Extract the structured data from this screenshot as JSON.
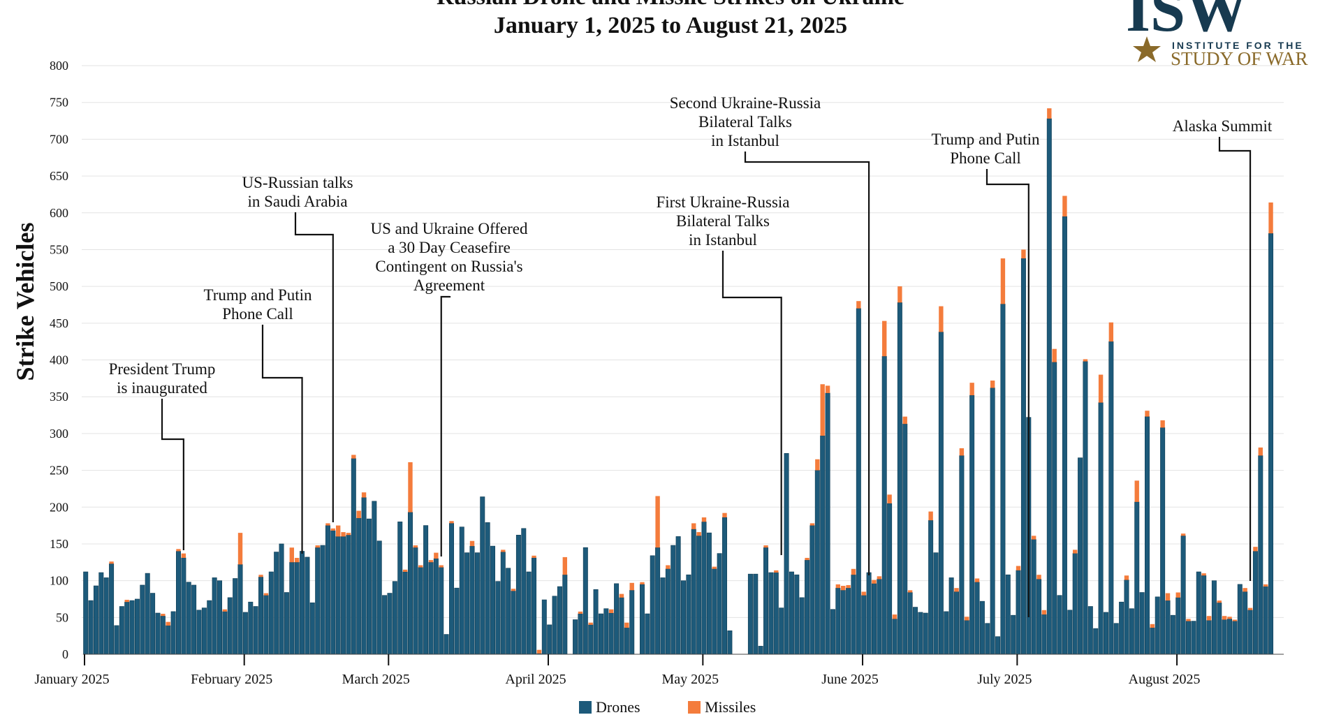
{
  "chart_data": {
    "type": "bar",
    "stacked": true,
    "title": "Russian Drone and Missile Strikes on Ukraine",
    "subtitle": "January 1, 2025 to August 21, 2025",
    "ylabel": "Strike Vehicles",
    "xlabel": "",
    "ylim": [
      0,
      800
    ],
    "yticks": [
      0,
      50,
      100,
      150,
      200,
      250,
      300,
      350,
      400,
      450,
      500,
      550,
      600,
      650,
      700,
      750,
      800
    ],
    "grid": true,
    "legend_position": "bottom-center",
    "x_start": "2025-01-01",
    "x_end": "2025-08-21",
    "month_ticks": [
      {
        "label": "January 2025",
        "date": "2025-01-01"
      },
      {
        "label": "February 2025",
        "date": "2025-02-01"
      },
      {
        "label": "March 2025",
        "date": "2025-03-01"
      },
      {
        "label": "April 2025",
        "date": "2025-04-01"
      },
      {
        "label": "May 2025",
        "date": "2025-05-01"
      },
      {
        "label": "June 2025",
        "date": "2025-06-01"
      },
      {
        "label": "July 2025",
        "date": "2025-07-01"
      },
      {
        "label": "August 2025",
        "date": "2025-08-01"
      }
    ],
    "series": [
      {
        "name": "Drones",
        "color": "#1d5a7a",
        "values": [
          112,
          73,
          93,
          111,
          104,
          123,
          39,
          65,
          71,
          73,
          75,
          94,
          110,
          83,
          56,
          52,
          39,
          58,
          140,
          131,
          98,
          94,
          60,
          63,
          73,
          104,
          100,
          58,
          77,
          103,
          122,
          57,
          71,
          65,
          105,
          80,
          112,
          139,
          150,
          84,
          125,
          125,
          140,
          132,
          70,
          145,
          148,
          175,
          168,
          160,
          160,
          162,
          266,
          185,
          213,
          184,
          208,
          154,
          80,
          83,
          99,
          180,
          112,
          193,
          145,
          118,
          175,
          125,
          130,
          118,
          27,
          178,
          90,
          173,
          138,
          147,
          138,
          214,
          179,
          147,
          99,
          139,
          117,
          86,
          162,
          171,
          112,
          131,
          1,
          74,
          40,
          79,
          92,
          108,
          0,
          47,
          55,
          145,
          40,
          88,
          55,
          62,
          56,
          96,
          77,
          36,
          87,
          0,
          95,
          55,
          134,
          145,
          104,
          116,
          148,
          160,
          100,
          108,
          170,
          161,
          180,
          165,
          116,
          137,
          186,
          32,
          0,
          0,
          0,
          109,
          109,
          11,
          145,
          111,
          111,
          63,
          273,
          112,
          108,
          77,
          128,
          175,
          250,
          297,
          355,
          61,
          90,
          87,
          90,
          108,
          470,
          80,
          111,
          96,
          102,
          405,
          205,
          48,
          478,
          313,
          84,
          64,
          57,
          56,
          182,
          138,
          438,
          58,
          104,
          85,
          270,
          46,
          352,
          98,
          72,
          42,
          362,
          24,
          476,
          108,
          53,
          114,
          538,
          322,
          156,
          102,
          54,
          728,
          397,
          80,
          595,
          60,
          137,
          267,
          398,
          65,
          35,
          342,
          57,
          425,
          42,
          71,
          101,
          62,
          207,
          84,
          323,
          36,
          78,
          308,
          73,
          53,
          77,
          161,
          45,
          45,
          112,
          107,
          46,
          100,
          70,
          47,
          48,
          45,
          95,
          85,
          60,
          140,
          270,
          92,
          572
        ],
        "color_name": "blue"
      },
      {
        "name": "Missiles",
        "color": "#f47c3c",
        "values": [
          0,
          0,
          0,
          0,
          0,
          3,
          0,
          0,
          3,
          0,
          0,
          0,
          0,
          0,
          0,
          3,
          5,
          0,
          3,
          6,
          0,
          0,
          0,
          0,
          0,
          0,
          0,
          3,
          0,
          0,
          43,
          0,
          0,
          0,
          3,
          3,
          0,
          0,
          0,
          0,
          20,
          6,
          0,
          0,
          0,
          3,
          0,
          3,
          3,
          15,
          6,
          3,
          5,
          10,
          7,
          0,
          0,
          0,
          0,
          0,
          0,
          0,
          3,
          68,
          3,
          3,
          0,
          3,
          8,
          3,
          0,
          3,
          0,
          0,
          0,
          7,
          0,
          0,
          0,
          0,
          0,
          3,
          0,
          3,
          0,
          0,
          0,
          3,
          5,
          0,
          0,
          0,
          0,
          24,
          0,
          0,
          3,
          0,
          3,
          0,
          0,
          0,
          5,
          0,
          5,
          7,
          10,
          0,
          3,
          0,
          0,
          70,
          0,
          5,
          0,
          0,
          0,
          0,
          8,
          5,
          6,
          0,
          3,
          0,
          6,
          0,
          0,
          0,
          0,
          0,
          0,
          0,
          3,
          0,
          3,
          0,
          0,
          0,
          0,
          0,
          3,
          3,
          15,
          70,
          10,
          0,
          5,
          6,
          4,
          8,
          10,
          5,
          0,
          5,
          4,
          48,
          12,
          6,
          22,
          10,
          3,
          0,
          0,
          0,
          12,
          0,
          35,
          0,
          0,
          5,
          10,
          5,
          17,
          5,
          0,
          0,
          10,
          0,
          62,
          0,
          0,
          6,
          12,
          0,
          5,
          6,
          6,
          14,
          18,
          0,
          28,
          0,
          5,
          0,
          3,
          0,
          0,
          38,
          0,
          26,
          0,
          0,
          6,
          0,
          29,
          0,
          8,
          5,
          0,
          10,
          10,
          0,
          7,
          3,
          3,
          0,
          0,
          3,
          6,
          0,
          3,
          5,
          3,
          2,
          0,
          5,
          3,
          6,
          11,
          3,
          42
        ]
      }
    ],
    "annotations": [
      {
        "text": [
          "President Trump",
          "is inaugurated"
        ],
        "date": "2025-01-20"
      },
      {
        "text": [
          "Trump and Putin",
          "Phone Call"
        ],
        "date": "2025-02-12"
      },
      {
        "text": [
          "US-Russian talks",
          "in Saudi Arabia"
        ],
        "date": "2025-02-18"
      },
      {
        "text": [
          "US and Ukraine Offered",
          "a 30 Day Ceasefire",
          "Contingent on Russia's",
          "Agreement"
        ],
        "date": "2025-03-11"
      },
      {
        "text": [
          "First Ukraine-Russia",
          "Bilateral Talks",
          "in Istanbul"
        ],
        "date": "2025-05-16"
      },
      {
        "text": [
          "Second Ukraine-Russia",
          "Bilateral Talks",
          "in Istanbul"
        ],
        "date": "2025-06-02"
      },
      {
        "text": [
          "Trump and Putin",
          "Phone Call"
        ],
        "date": "2025-07-03"
      },
      {
        "text": [
          "Alaska Summit"
        ],
        "date": "2025-08-15"
      }
    ],
    "legend": [
      {
        "label": "Drones",
        "color": "#1d5a7a"
      },
      {
        "label": "Missiles",
        "color": "#f47c3c"
      }
    ]
  },
  "logo": {
    "letters": "ISW",
    "line1": "INSTITUTE FOR THE",
    "line2": "STUDY OF WAR"
  }
}
